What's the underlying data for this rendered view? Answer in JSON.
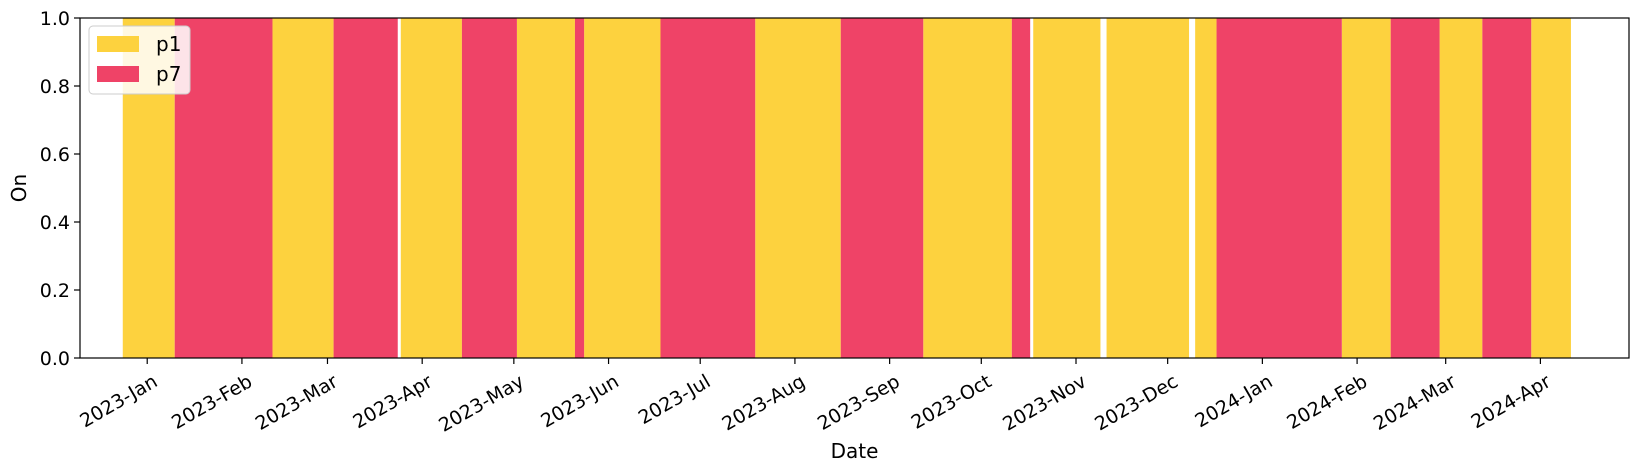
{
  "chart_data": {
    "type": "area",
    "xlabel": "Date",
    "ylabel": "On",
    "xlim": [
      "2022-12-10",
      "2024-04-30"
    ],
    "ylim": [
      0,
      1
    ],
    "y_ticks": [
      "0.0",
      "0.2",
      "0.4",
      "0.6",
      "0.8",
      "1.0"
    ],
    "x_ticks": [
      {
        "label": "2023-Jan",
        "date": "2023-01-01"
      },
      {
        "label": "2023-Feb",
        "date": "2023-02-01"
      },
      {
        "label": "2023-Mar",
        "date": "2023-03-01"
      },
      {
        "label": "2023-Apr",
        "date": "2023-04-01"
      },
      {
        "label": "2023-May",
        "date": "2023-05-01"
      },
      {
        "label": "2023-Jun",
        "date": "2023-06-01"
      },
      {
        "label": "2023-Jul",
        "date": "2023-07-01"
      },
      {
        "label": "2023-Aug",
        "date": "2023-08-01"
      },
      {
        "label": "2023-Sep",
        "date": "2023-09-01"
      },
      {
        "label": "2023-Oct",
        "date": "2023-10-01"
      },
      {
        "label": "2023-Nov",
        "date": "2023-11-01"
      },
      {
        "label": "2023-Dec",
        "date": "2023-12-01"
      },
      {
        "label": "2024-Jan",
        "date": "2024-01-01"
      },
      {
        "label": "2024-Feb",
        "date": "2024-02-01"
      },
      {
        "label": "2024-Mar",
        "date": "2024-03-01"
      },
      {
        "label": "2024-Apr",
        "date": "2024-04-01"
      }
    ],
    "legend_position": "top-left",
    "series": [
      {
        "name": "p1",
        "color": "#FDD23E",
        "on_periods": [
          [
            "2022-12-24",
            "2023-01-10"
          ],
          [
            "2023-02-11",
            "2023-03-03"
          ],
          [
            "2023-03-25",
            "2023-04-14"
          ],
          [
            "2023-05-02",
            "2023-05-21"
          ],
          [
            "2023-05-24",
            "2023-06-18"
          ],
          [
            "2023-07-19",
            "2023-08-16"
          ],
          [
            "2023-09-12",
            "2023-10-11"
          ],
          [
            "2023-10-18",
            "2023-11-09"
          ],
          [
            "2023-11-11",
            "2023-12-08"
          ],
          [
            "2023-12-10",
            "2023-12-17"
          ],
          [
            "2024-01-27",
            "2024-02-12"
          ],
          [
            "2024-02-28",
            "2024-03-13"
          ],
          [
            "2024-03-29",
            "2024-04-11"
          ]
        ]
      },
      {
        "name": "p7",
        "color": "#EF4367",
        "on_periods": [
          [
            "2023-01-10",
            "2023-02-11"
          ],
          [
            "2023-03-03",
            "2023-03-24"
          ],
          [
            "2023-04-14",
            "2023-05-02"
          ],
          [
            "2023-05-21",
            "2023-05-24"
          ],
          [
            "2023-06-18",
            "2023-07-19"
          ],
          [
            "2023-08-16",
            "2023-09-12"
          ],
          [
            "2023-10-11",
            "2023-10-17"
          ],
          [
            "2023-12-17",
            "2024-01-27"
          ],
          [
            "2024-02-12",
            "2024-02-28"
          ],
          [
            "2024-03-13",
            "2024-03-29"
          ]
        ]
      }
    ]
  }
}
